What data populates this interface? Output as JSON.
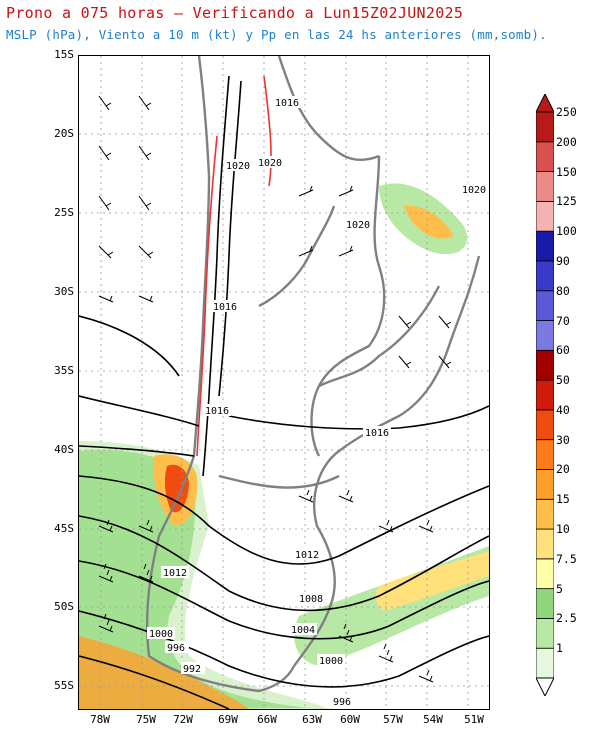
{
  "header": {
    "title": "Prono a 075 horas — Verificando a Lun15Z02JUN2025",
    "subtitle": "MSLP (hPa), Viento a 10 m (kt) y Pp en las 24 hs anteriores (mm,somb)."
  },
  "axes": {
    "lat_labels": [
      "15S",
      "20S",
      "25S",
      "30S",
      "35S",
      "40S",
      "45S",
      "50S",
      "55S"
    ],
    "lon_labels": [
      "78W",
      "75W",
      "72W",
      "69W",
      "66W",
      "63W",
      "60W",
      "57W",
      "54W",
      "51W"
    ]
  },
  "isobar_labels": [
    "1016",
    "1020",
    "1020",
    "1020",
    "1020",
    "1016",
    "1016",
    "1016",
    "1012",
    "1012",
    "1008",
    "1004",
    "1000",
    "1000",
    "996",
    "992",
    "996"
  ],
  "legend": {
    "levels": [
      "1",
      "2.5",
      "5",
      "7.5",
      "10",
      "15",
      "20",
      "30",
      "40",
      "50",
      "60",
      "70",
      "80",
      "90",
      "100",
      "125",
      "150",
      "200",
      "250"
    ],
    "colors": [
      "#e6f7e0",
      "#b7e8a4",
      "#8fd77a",
      "#ffffa8",
      "#ffe07a",
      "#ffbe4a",
      "#ff9f2a",
      "#ff7a1a",
      "#f04b10",
      "#d01a0a",
      "#a00000",
      "#7a7ae0",
      "#5a5ad8",
      "#3a3ac8",
      "#1a1aa8",
      "#f4b2b2",
      "#ec8a8a",
      "#d85050",
      "#b81a1a"
    ]
  },
  "map_colors": {
    "coast": "#808080",
    "isobar": "#000000",
    "barb": "#000000",
    "terrain_dark": "#000000",
    "terrain_red": "#ee3333"
  }
}
